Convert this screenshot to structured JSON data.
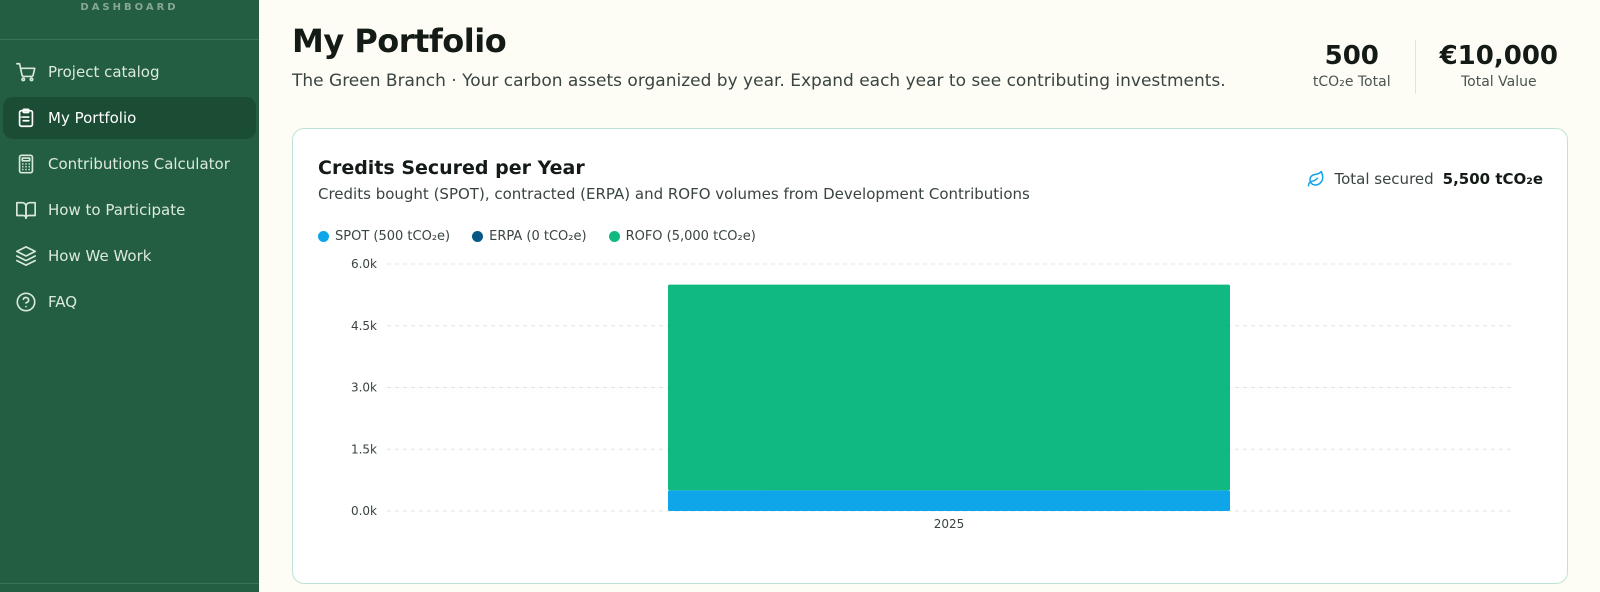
{
  "sidebar": {
    "header": "DASHBOARD",
    "items": [
      {
        "label": "Project catalog",
        "icon": "cart-icon",
        "active": false
      },
      {
        "label": "My Portfolio",
        "icon": "clipboard-icon",
        "active": true
      },
      {
        "label": "Contributions Calculator",
        "icon": "calculator-icon",
        "active": false
      },
      {
        "label": "How to Participate",
        "icon": "book-icon",
        "active": false
      },
      {
        "label": "How We Work",
        "icon": "layers-icon",
        "active": false
      },
      {
        "label": "FAQ",
        "icon": "help-circle-icon",
        "active": false
      }
    ]
  },
  "header": {
    "title": "My Portfolio",
    "subtitle": "The Green Branch · Your carbon assets organized by year. Expand each year to see contributing investments."
  },
  "stats": [
    {
      "value": "500",
      "label": "tCO₂e Total"
    },
    {
      "value": "€10,000",
      "label": "Total Value"
    }
  ],
  "card": {
    "title": "Credits Secured per Year",
    "subtitle": "Credits bought (SPOT), contracted (ERPA) and ROFO volumes from Development Contributions",
    "total_label": "Total secured",
    "total_value": "5,500 tCO₂e",
    "total_icon": "leaf-icon",
    "legend": [
      {
        "label": "SPOT (500 tCO₂e)",
        "color": "#0ea5e9"
      },
      {
        "label": "ERPA (0 tCO₂e)",
        "color": "#075985"
      },
      {
        "label": "ROFO (5,000 tCO₂e)",
        "color": "#10b981"
      }
    ]
  },
  "chart_data": {
    "type": "bar",
    "stacked": true,
    "categories": [
      "2025"
    ],
    "series": [
      {
        "name": "SPOT",
        "values": [
          500
        ],
        "color": "#0ea5e9"
      },
      {
        "name": "ERPA",
        "values": [
          0
        ],
        "color": "#075985"
      },
      {
        "name": "ROFO",
        "values": [
          5000
        ],
        "color": "#10b981"
      }
    ],
    "ylim": [
      0,
      6000
    ],
    "yticks": [
      0,
      1500,
      3000,
      4500,
      6000
    ],
    "ytick_labels": [
      "0.0k",
      "1.5k",
      "3.0k",
      "4.5k",
      "6.0k"
    ],
    "grid": true,
    "legend_position": "top-left",
    "title": "",
    "xlabel": "",
    "ylabel": ""
  }
}
